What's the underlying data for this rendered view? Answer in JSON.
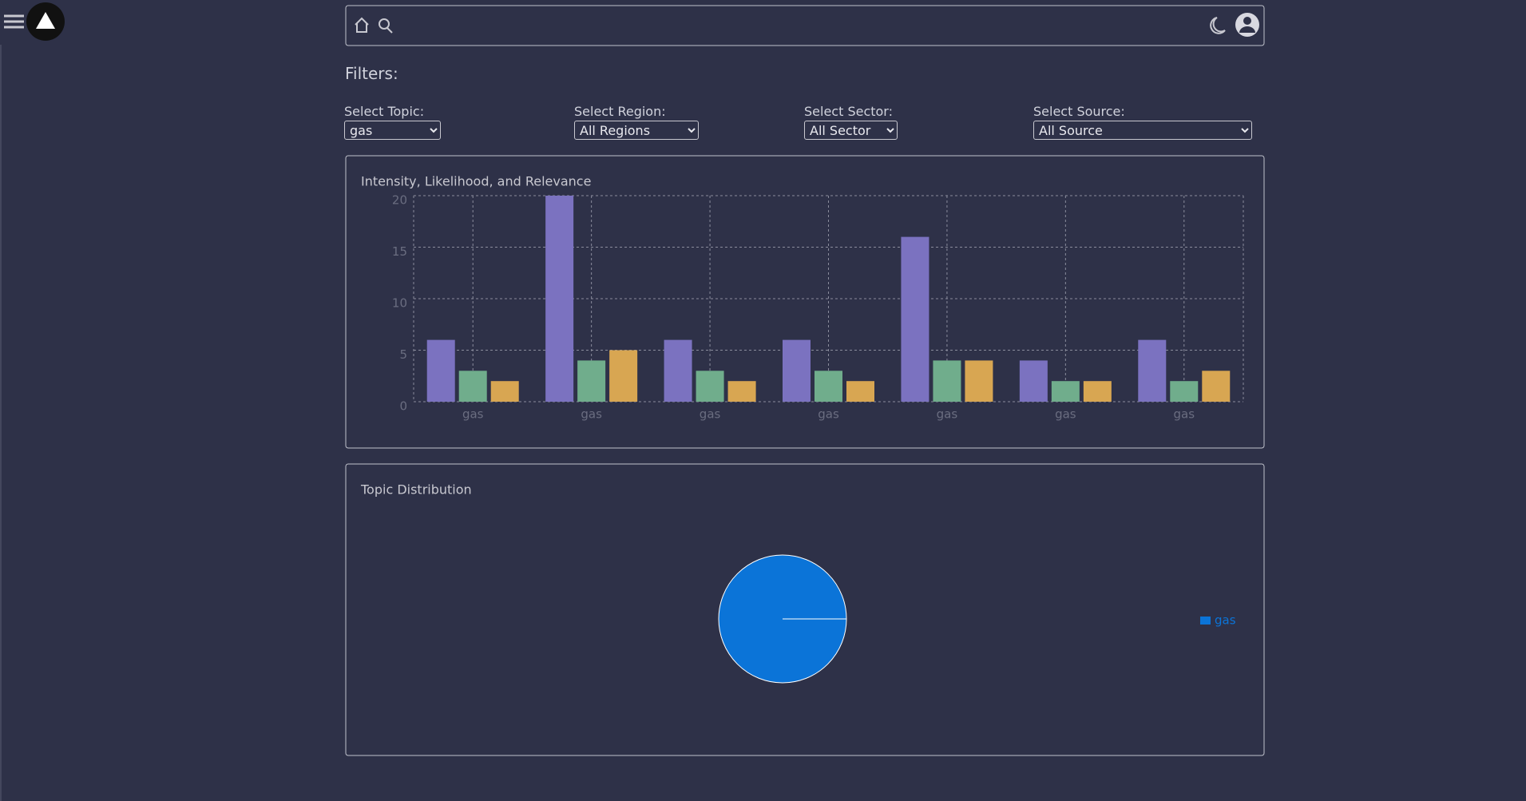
{
  "filters_heading": "Filters:",
  "filters": [
    {
      "label": "Select Topic:",
      "value": "gas"
    },
    {
      "label": "Select Region:",
      "value": "All Regions"
    },
    {
      "label": "Select Sector:",
      "value": "All Sector"
    },
    {
      "label": "Select Source:",
      "value": "All Source"
    }
  ],
  "chart_data": [
    {
      "type": "bar",
      "title": "Intensity, Likelihood, and Relevance",
      "categories": [
        "gas",
        "gas",
        "gas",
        "gas",
        "gas",
        "gas",
        "gas"
      ],
      "series": [
        {
          "color": "#7b72c0",
          "values": [
            6,
            20,
            6,
            6,
            16,
            4,
            6
          ]
        },
        {
          "color": "#70ad8c",
          "values": [
            3,
            4,
            3,
            3,
            4,
            2,
            2
          ]
        },
        {
          "color": "#d8a652",
          "values": [
            2,
            5,
            2,
            2,
            4,
            2,
            3
          ]
        }
      ],
      "ylim": [
        0,
        20
      ],
      "yticks": [
        0,
        5,
        10,
        15,
        20
      ],
      "grid": true
    },
    {
      "type": "pie",
      "title": "Topic Distribution",
      "categories": [
        "gas"
      ],
      "values": [
        100
      ],
      "colors": [
        "#0b74d8"
      ],
      "legend": "right"
    }
  ]
}
